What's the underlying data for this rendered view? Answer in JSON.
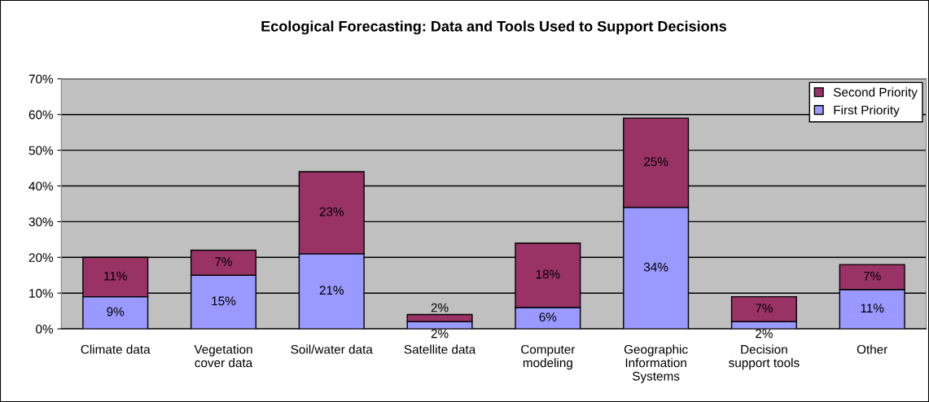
{
  "chart_data": {
    "type": "bar",
    "title": "Ecological Forecasting: Data and Tools Used to Support Decisions",
    "categories": [
      "Climate data",
      "Vegetation\ncover data",
      "Soil/water data",
      "Satellite data",
      "Computer\nmodeling",
      "Geographic\nInformation\nSystems",
      "Decision\nsupport tools",
      "Other"
    ],
    "series": [
      {
        "name": "First Priority",
        "color": "#9999ff",
        "values": [
          9,
          15,
          21,
          2,
          6,
          34,
          2,
          11
        ],
        "value_labels": [
          "9%",
          "15%",
          "21%",
          "2%",
          "6%",
          "34%",
          "2%",
          "11%"
        ]
      },
      {
        "name": "Second Priority",
        "color": "#993366",
        "values": [
          11,
          7,
          23,
          2,
          18,
          25,
          7,
          7
        ],
        "value_labels": [
          "11%",
          "7%",
          "23%",
          "2%",
          "18%",
          "25%",
          "7%",
          "7%"
        ]
      }
    ],
    "stacked": true,
    "ylim": [
      0,
      70
    ],
    "yticks": [
      {
        "value": 0,
        "label": "0%"
      },
      {
        "value": 10,
        "label": "10%"
      },
      {
        "value": 20,
        "label": "20%"
      },
      {
        "value": 30,
        "label": "30%"
      },
      {
        "value": 40,
        "label": "40%"
      },
      {
        "value": 50,
        "label": "50%"
      },
      {
        "value": 60,
        "label": "60%"
      },
      {
        "value": 70,
        "label": "70%"
      }
    ],
    "grid": "y",
    "legend": "top right"
  }
}
